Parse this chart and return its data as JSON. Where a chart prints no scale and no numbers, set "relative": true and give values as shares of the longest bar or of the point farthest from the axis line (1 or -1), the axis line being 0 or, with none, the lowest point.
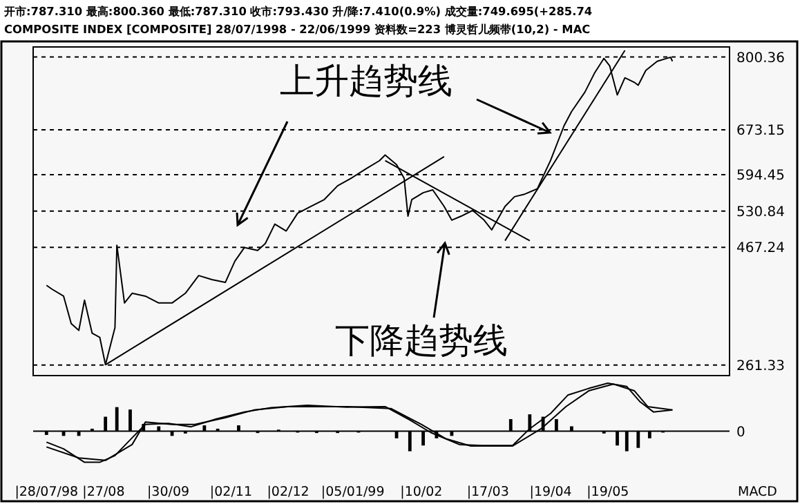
{
  "chart_data": [
    {
      "type": "line",
      "title": "开市:787.310 最高:800.360 最低:787.310 收市:793.430 升/降:7.410(0.9%) 成交量:749.695(+285.74",
      "subtitle": "COMPOSITE INDEX [COMPOSITE]  28/07/1998 - 22/06/1999 资料数=223 博灵哲儿频带(10,2) - MAC",
      "xlim": [
        "1998-07-21",
        "1999-07-22"
      ],
      "ylim": [
        243,
        818
      ],
      "yticks": [
        261.33,
        467.24,
        530.84,
        594.45,
        673.15,
        800.36
      ],
      "grid": "y",
      "tick_labels": "y",
      "line_style": "solid",
      "marker": "none",
      "series": [
        {
          "color": "#000000",
          "x": [
            "1998-07-28",
            "1998-07-31",
            "1998-08-06",
            "1998-08-10",
            "1998-08-14",
            "1998-08-17",
            "1998-08-21",
            "1998-08-25",
            "1998-08-28",
            "1998-09-02",
            "1998-09-03",
            "1998-09-07",
            "1998-09-11",
            "1998-09-18",
            "1998-09-25",
            "1998-10-02",
            "1998-10-09",
            "1998-10-16",
            "1998-10-23",
            "1998-10-30",
            "1998-11-04",
            "1998-11-09",
            "1998-11-16",
            "1998-11-20",
            "1998-11-25",
            "1998-12-01",
            "1998-12-07",
            "1998-12-14",
            "1998-12-21",
            "1998-12-28",
            "1999-01-04",
            "1999-01-12",
            "1999-01-19",
            "1999-01-22",
            "1999-01-28",
            "1999-02-01",
            "1999-02-03",
            "1999-02-05",
            "1999-02-11",
            "1999-02-16",
            "1999-02-22",
            "1999-02-26",
            "1999-03-03",
            "1999-03-09",
            "1999-03-15",
            "1999-03-19",
            "1999-03-26",
            "1999-03-31",
            "1999-04-05",
            "1999-04-12",
            "1999-04-19",
            "1999-04-26",
            "1999-04-30",
            "1999-05-07",
            "1999-05-12",
            "1999-05-17",
            "1999-05-20",
            "1999-05-24",
            "1999-05-28",
            "1999-06-02",
            "1999-06-04",
            "1999-06-08",
            "1999-06-14",
            "1999-06-21",
            "1999-06-22"
          ],
          "values": [
            401,
            394,
            382,
            334,
            322,
            375,
            317,
            310,
            262,
            327,
            471,
            370,
            387,
            382,
            370,
            370,
            387,
            418,
            411,
            406,
            443,
            467,
            462,
            474,
            508,
            496,
            527,
            539,
            551,
            575,
            588,
            605,
            619,
            629,
            612,
            588,
            522,
            551,
            563,
            568,
            539,
            515,
            522,
            532,
            515,
            498,
            539,
            556,
            560,
            570,
            620,
            680,
            705,
            739,
            772,
            798,
            785,
            734,
            764,
            756,
            751,
            777,
            793,
            800,
            793
          ]
        },
        {
          "color": "#000000",
          "x": [
            "1998-08-28",
            "1999-02-22"
          ],
          "values": [
            262,
            626
          ]
        },
        {
          "color": "#000000",
          "x": [
            "1999-01-22",
            "1999-04-08"
          ],
          "values": [
            619,
            479
          ]
        },
        {
          "color": "#000000",
          "x": [
            "1999-03-26",
            "1999-05-28"
          ],
          "values": [
            479,
            812
          ]
        }
      ],
      "annotations": [
        "上升趋势线",
        "下降趋势线"
      ]
    },
    {
      "type": "line",
      "relative": true,
      "xlim": [
        "1998-07-21",
        "1999-07-22"
      ],
      "grid": false,
      "line_style": "solid",
      "marker": "none",
      "xticks": [
        {
          "value": "1998-07-28",
          "label": "|28/07/98"
        },
        {
          "value": "1998-08-27",
          "label": "|27/08"
        },
        {
          "value": "1998-09-30",
          "label": "|30/09"
        },
        {
          "value": "1998-11-02",
          "label": "|02/11"
        },
        {
          "value": "1998-12-02",
          "label": "|02/12"
        },
        {
          "value": "1999-01-05",
          "label": "|05/01/99"
        },
        {
          "value": "1999-02-10",
          "label": "|10/02"
        },
        {
          "value": "1999-03-17",
          "label": "|17/03"
        },
        {
          "value": "1999-04-19",
          "label": "|19/04"
        },
        {
          "value": "1999-05-19",
          "label": "|19/05"
        }
      ],
      "series": [
        {
          "type": "bar",
          "color": "#000000",
          "x": [
            "1998-07-28",
            "1998-08-06",
            "1998-08-14",
            "1998-08-21",
            "1998-08-28",
            "1998-09-03",
            "1998-09-10",
            "1998-09-17",
            "1998-09-25",
            "1998-10-02",
            "1998-10-09",
            "1998-10-19",
            "1998-10-26",
            "1998-11-06",
            "1998-11-16",
            "1998-11-27",
            "1998-12-07",
            "1998-12-17",
            "1998-12-28",
            "1999-01-08",
            "1999-01-28",
            "1999-02-04",
            "1999-02-11",
            "1999-02-18",
            "1999-02-26",
            "1999-03-29",
            "1999-04-08",
            "1999-04-15",
            "1999-04-22",
            "1999-04-30",
            "1999-05-17",
            "1999-05-24",
            "1999-05-29",
            "1999-06-04",
            "1999-06-10",
            "1999-06-17"
          ],
          "values": [
            -0.08,
            -0.1,
            -0.1,
            0.05,
            0.3,
            0.5,
            0.45,
            0.15,
            0.1,
            -0.1,
            -0.05,
            0.12,
            0.05,
            0.12,
            -0.04,
            0.03,
            -0.03,
            -0.04,
            -0.04,
            -0.03,
            -0.15,
            -0.42,
            -0.3,
            -0.15,
            -0.1,
            0.25,
            0.35,
            0.3,
            0.25,
            0.1,
            -0.05,
            -0.3,
            -0.42,
            -0.35,
            -0.15,
            -0.03
          ]
        },
        {
          "color": "#000000",
          "x": [
            "1998-07-28",
            "1998-08-06",
            "1998-08-17",
            "1998-08-25",
            "1998-09-02",
            "1998-09-11",
            "1998-09-18",
            "1998-09-30",
            "1998-10-12",
            "1998-10-25",
            "1998-11-09",
            "1998-11-23",
            "1998-12-12",
            "1999-01-02",
            "1999-01-22",
            "1999-02-04",
            "1999-02-15",
            "1999-03-02",
            "1999-03-14",
            "1999-03-30",
            "1999-04-08",
            "1999-04-19",
            "1999-04-28",
            "1999-05-09",
            "1999-05-19",
            "1999-05-29",
            "1999-06-05",
            "1999-06-12",
            "1999-06-22"
          ],
          "values": [
            -0.23,
            -0.37,
            -0.65,
            -0.65,
            -0.51,
            -0.14,
            0.14,
            0.16,
            0.09,
            0.25,
            0.4,
            0.49,
            0.54,
            0.5,
            0.51,
            0.23,
            -0.03,
            -0.28,
            -0.3,
            -0.3,
            0.05,
            0.37,
            0.75,
            0.89,
            1,
            0.93,
            0.61,
            0.4,
            0.44
          ]
        },
        {
          "color": "#000000",
          "x": [
            "1998-07-28",
            "1998-08-14",
            "1998-08-28",
            "1998-09-11",
            "1998-09-18",
            "1998-10-02",
            "1998-10-14",
            "1998-10-30",
            "1998-11-14",
            "1998-12-02",
            "1999-01-02",
            "1999-01-25",
            "1999-02-10",
            "1999-02-23",
            "1999-03-08",
            "1999-03-30",
            "1999-04-14",
            "1999-04-27",
            "1999-05-09",
            "1999-05-22",
            "1999-06-02",
            "1999-06-09",
            "1999-06-22"
          ],
          "values": [
            -0.33,
            -0.56,
            -0.61,
            -0.28,
            0.19,
            0.14,
            0.14,
            0.28,
            0.44,
            0.51,
            0.51,
            0.47,
            0.14,
            -0.16,
            -0.31,
            -0.31,
            0.05,
            0.51,
            0.84,
            0.98,
            0.84,
            0.51,
            0.44
          ]
        }
      ],
      "annotations": [
        "0",
        "MACD"
      ]
    }
  ]
}
